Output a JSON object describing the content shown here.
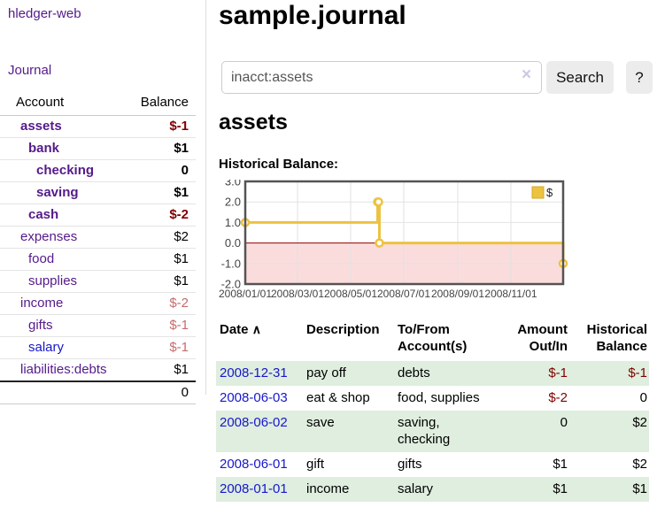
{
  "app": {
    "brand": "hledger-web"
  },
  "sidebar": {
    "journal_link": "Journal",
    "accounts_table": {
      "headers": {
        "account": "Account",
        "balance": "Balance"
      },
      "rows": [
        {
          "name": "assets",
          "balance": "$-1"
        },
        {
          "name": "bank",
          "balance": "$1"
        },
        {
          "name": "checking",
          "balance": "0"
        },
        {
          "name": "saving",
          "balance": "$1"
        },
        {
          "name": "cash",
          "balance": "$-2"
        },
        {
          "name": "expenses",
          "balance": "$2"
        },
        {
          "name": "food",
          "balance": "$1"
        },
        {
          "name": "supplies",
          "balance": "$1"
        },
        {
          "name": "income",
          "balance": "$-2"
        },
        {
          "name": "gifts",
          "balance": "$-1"
        },
        {
          "name": "salary",
          "balance": "$-1"
        },
        {
          "name": "liabilities:debts",
          "balance": "$1"
        }
      ],
      "total": "0"
    }
  },
  "main": {
    "title": "sample.journal",
    "search": {
      "value": "inacct:assets",
      "clear_icon": "×",
      "search_button": "Search",
      "help_button": "?"
    },
    "account_heading": "assets",
    "chart_title": "Historical Balance:"
  },
  "register": {
    "headers": {
      "date": "Date",
      "sort_icon": "∧",
      "description": "Description",
      "accounts": "To/From Account(s)",
      "amount": "Amount Out/In",
      "balance": "Historical Balance"
    },
    "rows": [
      {
        "date": "2008-12-31",
        "description": "pay off",
        "accounts": "debts",
        "amount": "$-1",
        "balance": "$-1"
      },
      {
        "date": "2008-06-03",
        "description": "eat & shop",
        "accounts": "food, supplies",
        "amount": "$-2",
        "balance": "0"
      },
      {
        "date": "2008-06-02",
        "description": "save",
        "accounts": "saving, checking",
        "amount": "0",
        "balance": "$2"
      },
      {
        "date": "2008-06-01",
        "description": "gift",
        "accounts": "gifts",
        "amount": "$1",
        "balance": "$2"
      },
      {
        "date": "2008-01-01",
        "description": "income",
        "accounts": "salary",
        "amount": "$1",
        "balance": "$1"
      }
    ]
  },
  "chart_data": {
    "type": "line",
    "step": true,
    "title": "Historical Balance",
    "series": [
      {
        "name": "$",
        "color": "#edc240",
        "points": [
          {
            "date": "2008-01-01",
            "day": 0,
            "value": 1
          },
          {
            "date": "2008-06-01",
            "day": 152,
            "value": 2
          },
          {
            "date": "2008-06-02",
            "day": 153,
            "value": 2
          },
          {
            "date": "2008-06-03",
            "day": 154,
            "value": 0
          },
          {
            "date": "2008-12-31",
            "day": 365,
            "value": -1
          }
        ]
      }
    ],
    "x_ticks": [
      {
        "label": "2008/01/01",
        "day": 0
      },
      {
        "label": "2008/03/01",
        "day": 60
      },
      {
        "label": "2008/05/01",
        "day": 121
      },
      {
        "label": "2008/07/01",
        "day": 182
      },
      {
        "label": "2008/09/01",
        "day": 244
      },
      {
        "label": "2008/11/01",
        "day": 305
      }
    ],
    "x_range_days": 365,
    "y_ticks": [
      3.0,
      2.0,
      1.0,
      0.0,
      -1.0,
      -2.0
    ],
    "ylim": [
      -2,
      3
    ],
    "grid": true,
    "legend": {
      "label": "$",
      "position": "top-right"
    },
    "negative_region_color": "#fbdcdc",
    "zero_line_color": "#8b0000",
    "border_color": "#545454",
    "grid_color": "#e2e2e2"
  },
  "colors": {
    "link_purple": "#551a8b",
    "link_blue": "#1717cc",
    "negative_strong": "#800000",
    "negative_faint": "#c56c6c",
    "row_stripe_green": "#dfeede",
    "series_gold": "#edc240"
  }
}
